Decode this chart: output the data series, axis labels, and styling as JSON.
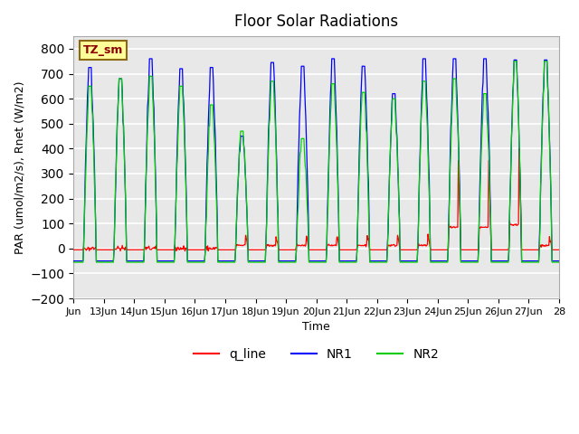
{
  "title": "Floor Solar Radiations",
  "xlabel": "Time",
  "ylabel": "PAR (umol/m2/s), Rnet (W/m2)",
  "ylim": [
    -200,
    850
  ],
  "yticks": [
    -200,
    -100,
    0,
    100,
    200,
    300,
    400,
    500,
    600,
    700,
    800
  ],
  "bg_color": "#e8e8e8",
  "fig_color": "#ffffff",
  "grid_color": "#ffffff",
  "label_box": "TZ_sm",
  "label_box_color": "#ffff99",
  "label_box_text_color": "#8b0000",
  "days": 16,
  "q_line_color": "#ff0000",
  "NR1_color": "#0000ff",
  "NR2_color": "#00cc00",
  "xtick_positions": [
    0,
    1,
    2,
    3,
    4,
    5,
    6,
    7,
    8,
    9,
    10,
    11,
    12,
    13,
    14,
    15,
    16
  ],
  "xtick_labels": [
    "Jun",
    "13Jun",
    "14Jun",
    "15Jun",
    "16Jun",
    "17Jun",
    "18Jun",
    "19Jun",
    "20Jun",
    "21Jun",
    "22Jun",
    "23Jun",
    "24Jun",
    "25Jun",
    "26Jun",
    "27Jun",
    "28"
  ],
  "points_per_day": 48,
  "NR1_day_peaks": [
    725,
    680,
    760,
    720,
    725,
    450,
    745,
    730,
    760,
    730,
    620,
    760,
    760,
    760,
    755,
    755
  ],
  "NR2_day_peaks": [
    650,
    680,
    690,
    650,
    575,
    470,
    670,
    440,
    660,
    625,
    600,
    670,
    680,
    620,
    750,
    750
  ],
  "q_day_peaks": [
    0,
    0,
    0,
    0,
    0,
    90,
    90,
    90,
    90,
    90,
    90,
    90,
    600,
    600,
    680,
    80
  ],
  "NR1_night": -50,
  "NR2_night": -55,
  "q_night": -5
}
